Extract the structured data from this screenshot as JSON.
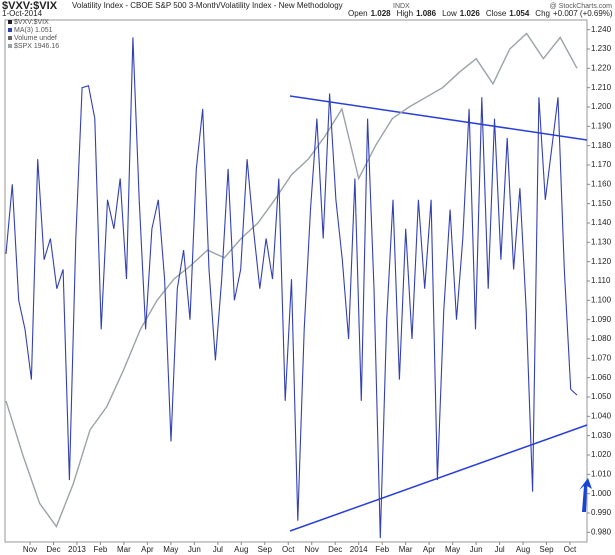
{
  "chart_data": {
    "type": "line",
    "symbol": "$VXV:$VIX",
    "title": "Volatility Index - CBOE S&P 500 3-Month/Volatility Index - New Methodology",
    "exchange": "INDX",
    "date": "1-Oct-2014",
    "watermark": "@ StockCharts.com",
    "quote": [
      {
        "label": "Open",
        "value": 1.028
      },
      {
        "label": "High",
        "value": 1.086
      },
      {
        "label": "Low",
        "value": 1.026
      },
      {
        "label": "Close",
        "value": 1.054
      }
    ],
    "change_label": "Chg",
    "change": "+0.007 (+0.69%)",
    "legend_extra": [
      "$VXV:$VIX",
      "Volume undef"
    ],
    "x_labels": [
      "Nov",
      "Dec",
      "2013",
      "Feb",
      "Mar",
      "Apr",
      "May",
      "Jun",
      "Jul",
      "Aug",
      "Sep",
      "Oct",
      "Nov",
      "Dec",
      "2014",
      "Feb",
      "Mar",
      "Apr",
      "May",
      "Jun",
      "Jul",
      "Aug",
      "Sep",
      "Oct"
    ],
    "series": [
      {
        "name": "$SPX 1946.16",
        "color": "#9aa3a8",
        "values": [
          1.048,
          1.02,
          0.995,
          0.983,
          1.005,
          1.033,
          1.045,
          1.064,
          1.085,
          1.1,
          1.111,
          1.118,
          1.126,
          1.122,
          1.132,
          1.14,
          1.152,
          1.165,
          1.173,
          1.185,
          1.199,
          1.163,
          1.18,
          1.194,
          1.2,
          1.205,
          1.21,
          1.218,
          1.225,
          1.212,
          1.23,
          1.238,
          1.225,
          1.236,
          1.22
        ]
      },
      {
        "name": "MA(3) 1.051",
        "color": "#3340b0",
        "values": [
          1.124,
          1.16,
          1.1,
          1.085,
          1.059,
          1.173,
          1.121,
          1.132,
          1.106,
          1.116,
          1.007,
          1.132,
          1.21,
          1.211,
          1.194,
          1.085,
          1.152,
          1.137,
          1.163,
          1.111,
          1.236,
          1.152,
          1.085,
          1.137,
          1.152,
          1.111,
          1.027,
          1.106,
          1.126,
          1.09,
          1.168,
          1.199,
          1.116,
          1.069,
          1.111,
          1.168,
          1.1,
          1.116,
          1.173,
          1.137,
          1.106,
          1.132,
          1.111,
          1.163,
          1.048,
          1.111,
          0.986,
          1.085,
          1.147,
          1.194,
          1.132,
          1.207,
          1.152,
          1.121,
          1.08,
          1.163,
          1.048,
          1.194,
          1.106,
          0.977,
          1.09,
          1.152,
          1.059,
          1.137,
          1.08,
          1.152,
          1.106,
          1.152,
          1.007,
          1.095,
          1.147,
          1.09,
          1.132,
          1.199,
          1.085,
          1.205,
          1.106,
          1.194,
          1.121,
          1.184,
          1.116,
          1.158,
          1.095,
          1.001,
          1.205,
          1.152,
          1.178,
          1.205,
          1.116,
          1.054,
          1.051
        ]
      }
    ],
    "ylim": [
      0.975,
      1.245
    ],
    "yticks": [
      {
        "value": 0.98,
        "label": "0.980"
      },
      {
        "value": 0.99,
        "label": "0.990"
      },
      {
        "value": 1.0,
        "label": "1.000"
      },
      {
        "value": 1.01,
        "label": "1.010"
      },
      {
        "value": 1.02,
        "label": "1.020"
      },
      {
        "value": 1.03,
        "label": "1.030"
      },
      {
        "value": 1.04,
        "label": "1.040"
      },
      {
        "value": 1.05,
        "label": "1.050"
      },
      {
        "value": 1.06,
        "label": "1.060"
      },
      {
        "value": 1.07,
        "label": "1.070"
      },
      {
        "value": 1.08,
        "label": "1.080"
      },
      {
        "value": 1.09,
        "label": "1.090"
      },
      {
        "value": 1.1,
        "label": "1.100"
      },
      {
        "value": 1.11,
        "label": "1.110"
      },
      {
        "value": 1.12,
        "label": "1.120"
      },
      {
        "value": 1.13,
        "label": "1.130"
      },
      {
        "value": 1.14,
        "label": "1.140"
      },
      {
        "value": 1.15,
        "label": "1.150"
      },
      {
        "value": 1.16,
        "label": "1.160"
      },
      {
        "value": 1.17,
        "label": "1.170"
      },
      {
        "value": 1.18,
        "label": "1.180"
      },
      {
        "value": 1.19,
        "label": "1.190"
      },
      {
        "value": 1.2,
        "label": "1.200"
      },
      {
        "value": 1.21,
        "label": "1.210"
      },
      {
        "value": 1.22,
        "label": "1.220"
      },
      {
        "value": 1.23,
        "label": "1.230"
      },
      {
        "value": 1.24,
        "label": "1.240"
      }
    ]
  }
}
